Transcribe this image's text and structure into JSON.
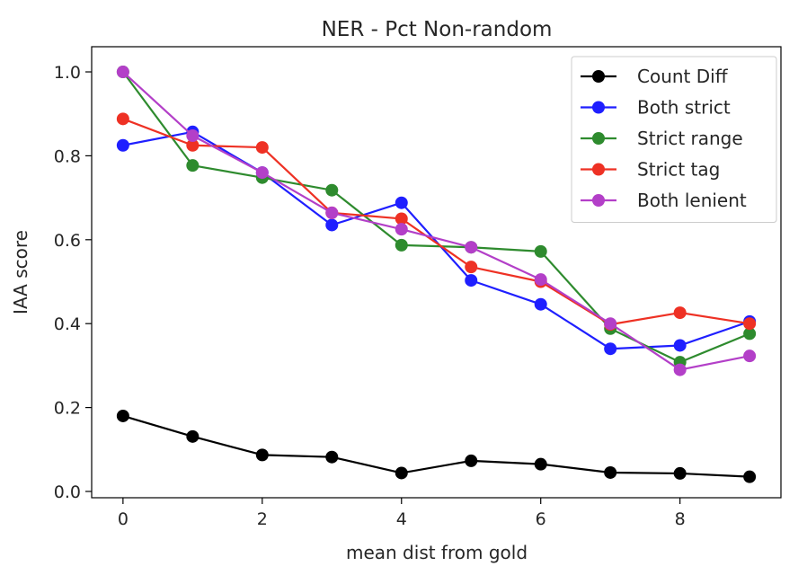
{
  "chart_data": {
    "type": "line",
    "title": "NER - Pct Non-random",
    "xlabel": "mean dist from gold",
    "ylabel": "IAA score",
    "x": [
      0,
      1,
      2,
      3,
      4,
      5,
      6,
      7,
      8,
      9
    ],
    "xlim": [
      -0.45,
      9.45
    ],
    "ylim": [
      -0.015,
      1.06
    ],
    "xticks": [
      0,
      2,
      4,
      6,
      8
    ],
    "xtick_labels": [
      "0",
      "2",
      "4",
      "6",
      "8"
    ],
    "yticks": [
      0.0,
      0.2,
      0.4,
      0.6,
      0.8,
      1.0
    ],
    "ytick_labels": [
      "0.0",
      "0.2",
      "0.4",
      "0.6",
      "0.8",
      "1.0"
    ],
    "legend_position": "top-right",
    "series": [
      {
        "name": "Count Diff",
        "color": "#000000",
        "values": [
          0.18,
          0.131,
          0.087,
          0.082,
          0.044,
          0.073,
          0.065,
          0.045,
          0.043,
          0.035
        ]
      },
      {
        "name": "Both strict",
        "color": "#1f1fff",
        "values": [
          0.825,
          0.857,
          0.76,
          0.635,
          0.688,
          0.503,
          0.446,
          0.34,
          0.348,
          0.405
        ]
      },
      {
        "name": "Strict range",
        "color": "#2e8b2e",
        "values": [
          1.0,
          0.777,
          0.748,
          0.718,
          0.587,
          0.582,
          0.572,
          0.388,
          0.308,
          0.376
        ]
      },
      {
        "name": "Strict tag",
        "color": "#ee3124",
        "values": [
          0.888,
          0.825,
          0.82,
          0.664,
          0.65,
          0.535,
          0.5,
          0.398,
          0.426,
          0.4
        ]
      },
      {
        "name": "Both lenient",
        "color": "#b33fc8",
        "values": [
          1.0,
          0.848,
          0.76,
          0.664,
          0.625,
          0.582,
          0.505,
          0.4,
          0.29,
          0.323
        ]
      }
    ]
  }
}
